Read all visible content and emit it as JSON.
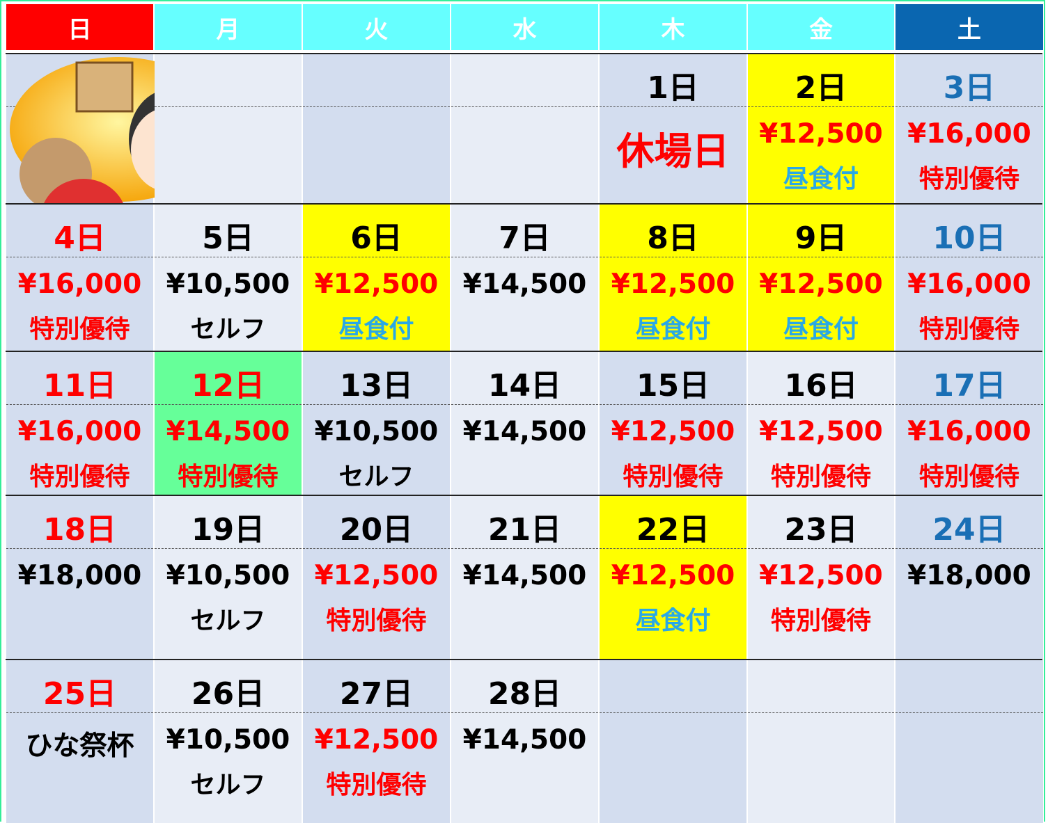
{
  "header": {
    "days": [
      "日",
      "月",
      "火",
      "水",
      "木",
      "金",
      "土"
    ],
    "colors": [
      "#ff0000",
      "#66ffff",
      "#66ffff",
      "#66ffff",
      "#66ffff",
      "#66ffff",
      "#0a66b0"
    ]
  },
  "weeks": [
    [
      null,
      null,
      null,
      null,
      {
        "day": "1日",
        "line1": "休場日",
        "line1_color": "#ff0000",
        "big": true
      },
      {
        "day": "2日",
        "bg": "#ffff00",
        "line1": "¥12,500",
        "line1_color": "#ff0000",
        "line2": "昼食付",
        "line2_color": "#29a8e6"
      },
      {
        "day": "3日",
        "day_color": "#1a6fb5",
        "line1": "¥16,000",
        "line1_color": "#ff0000",
        "line2": "特別優待",
        "line2_color": "#ff0000"
      }
    ],
    [
      {
        "day": "4日",
        "day_color": "#ff0000",
        "line1": "¥16,000",
        "line1_color": "#ff0000",
        "line2": "特別優待",
        "line2_color": "#ff0000"
      },
      {
        "day": "5日",
        "line1": "¥10,500",
        "line2": "セルフ"
      },
      {
        "day": "6日",
        "bg": "#ffff00",
        "line1": "¥12,500",
        "line1_color": "#ff0000",
        "line2": "昼食付",
        "line2_color": "#29a8e6"
      },
      {
        "day": "7日",
        "line1": "¥14,500"
      },
      {
        "day": "8日",
        "bg": "#ffff00",
        "line1": "¥12,500",
        "line1_color": "#ff0000",
        "line2": "昼食付",
        "line2_color": "#29a8e6"
      },
      {
        "day": "9日",
        "bg": "#ffff00",
        "line1": "¥12,500",
        "line1_color": "#ff0000",
        "line2": "昼食付",
        "line2_color": "#29a8e6"
      },
      {
        "day": "10日",
        "day_color": "#1a6fb5",
        "line1": "¥16,000",
        "line1_color": "#ff0000",
        "line2": "特別優待",
        "line2_color": "#ff0000"
      }
    ],
    [
      {
        "day": "11日",
        "day_color": "#ff0000",
        "line1": "¥16,000",
        "line1_color": "#ff0000",
        "line2": "特別優待",
        "line2_color": "#ff0000"
      },
      {
        "day": "12日",
        "bg": "#66ff99",
        "day_color": "#ff0000",
        "line1": "¥14,500",
        "line1_color": "#ff0000",
        "line2": "特別優待",
        "line2_color": "#ff0000"
      },
      {
        "day": "13日",
        "line1": "¥10,500",
        "line2": "セルフ"
      },
      {
        "day": "14日",
        "line1": "¥14,500"
      },
      {
        "day": "15日",
        "line1": "¥12,500",
        "line1_color": "#ff0000",
        "line2": "特別優待",
        "line2_color": "#ff0000"
      },
      {
        "day": "16日",
        "line1": "¥12,500",
        "line1_color": "#ff0000",
        "line2": "特別優待",
        "line2_color": "#ff0000"
      },
      {
        "day": "17日",
        "day_color": "#1a6fb5",
        "line1": "¥16,000",
        "line1_color": "#ff0000",
        "line2": "特別優待",
        "line2_color": "#ff0000"
      }
    ],
    [
      {
        "day": "18日",
        "day_color": "#ff0000",
        "line1": "¥18,000"
      },
      {
        "day": "19日",
        "line1": "¥10,500",
        "line2": "セルフ"
      },
      {
        "day": "20日",
        "line1": "¥12,500",
        "line1_color": "#ff0000",
        "line2": "特別優待",
        "line2_color": "#ff0000"
      },
      {
        "day": "21日",
        "line1": "¥14,500"
      },
      {
        "day": "22日",
        "bg": "#ffff00",
        "line1": "¥12,500",
        "line1_color": "#ff0000",
        "line2": "昼食付",
        "line2_color": "#29a8e6"
      },
      {
        "day": "23日",
        "line1": "¥12,500",
        "line1_color": "#ff0000",
        "line2": "特別優待",
        "line2_color": "#ff0000"
      },
      {
        "day": "24日",
        "day_color": "#1a6fb5",
        "line1": "¥18,000"
      }
    ],
    [
      {
        "day": "25日",
        "day_color": "#ff0000",
        "line1": "ひな祭杯"
      },
      {
        "day": "26日",
        "line1": "¥10,500",
        "line2": "セルフ"
      },
      {
        "day": "27日",
        "line1": "¥12,500",
        "line1_color": "#ff0000",
        "line2": "特別優待",
        "line2_color": "#ff0000"
      },
      {
        "day": "28日",
        "line1": "¥14,500"
      },
      null,
      null,
      null
    ]
  ]
}
